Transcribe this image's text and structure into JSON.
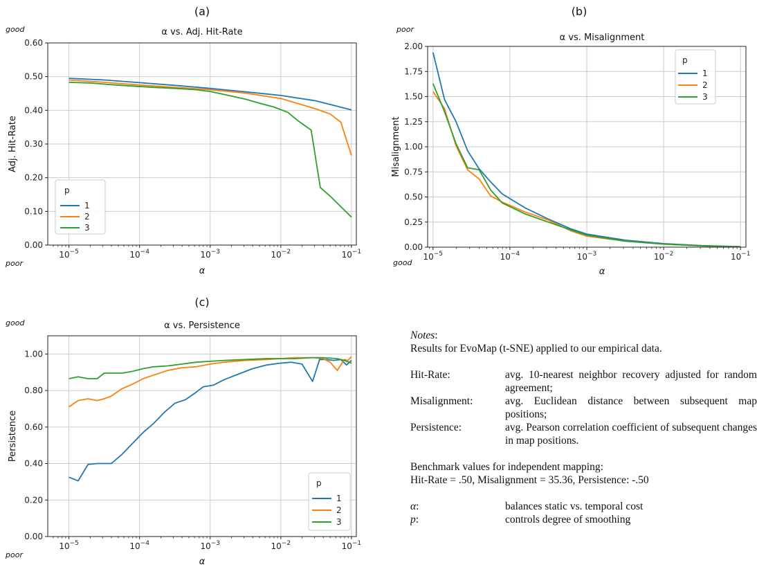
{
  "charts": [
    {
      "id": "a",
      "panel_label": "(a)",
      "quality_top": "good",
      "quality_bottom": "poor",
      "legend_position": "lower-left"
    },
    {
      "id": "b",
      "panel_label": "(b)",
      "quality_top": "poor",
      "quality_bottom": "good",
      "legend_position": "upper-right"
    },
    {
      "id": "c",
      "panel_label": "(c)",
      "quality_top": "good",
      "quality_bottom": "poor",
      "legend_position": "lower-right"
    }
  ],
  "colors": {
    "p1": "#1f77b4",
    "p2": "#ff7f0e",
    "p3": "#2ca02c",
    "grid": "#cccccc"
  },
  "chart_data": [
    {
      "type": "line",
      "title": "α vs. Adj. Hit-Rate",
      "xlabel": "α",
      "ylabel": "Adj. Hit-Rate",
      "xscale": "log",
      "xlim": [
        -5.3,
        -0.93
      ],
      "ylim": [
        0,
        0.6
      ],
      "xticks": [
        -5,
        -4,
        -3,
        -2,
        -1
      ],
      "yticks": [
        "0.00",
        "0.10",
        "0.20",
        "0.30",
        "0.40",
        "0.50",
        "0.60"
      ],
      "grid": true,
      "legend_title": "p",
      "series": [
        {
          "name": "1",
          "x": [
            -5,
            -4.5,
            -4,
            -3.5,
            -3,
            -2.5,
            -2,
            -1.5,
            -1.2,
            -1
          ],
          "y": [
            0.495,
            0.49,
            0.482,
            0.474,
            0.465,
            0.455,
            0.444,
            0.428,
            0.412,
            0.401
          ]
        },
        {
          "name": "2",
          "x": [
            -5,
            -4.5,
            -4,
            -3.5,
            -3,
            -2.5,
            -2,
            -1.5,
            -1.3,
            -1.15,
            -1
          ],
          "y": [
            0.49,
            0.483,
            0.475,
            0.468,
            0.461,
            0.451,
            0.435,
            0.404,
            0.389,
            0.365,
            0.266
          ]
        },
        {
          "name": "3",
          "x": [
            -5,
            -4.7,
            -4.4,
            -4.1,
            -3.8,
            -3.5,
            -3.2,
            -3,
            -2.8,
            -2.5,
            -2.3,
            -2.1,
            -1.9,
            -1.75,
            -1.57,
            -1.44,
            -1.3,
            -1
          ],
          "y": [
            0.483,
            0.481,
            0.476,
            0.472,
            0.468,
            0.465,
            0.461,
            0.456,
            0.447,
            0.433,
            0.421,
            0.41,
            0.394,
            0.368,
            0.341,
            0.171,
            0.145,
            0.083
          ]
        }
      ]
    },
    {
      "type": "line",
      "title": "α vs. Misalignment",
      "xlabel": "α",
      "ylabel": "Misalignment",
      "xscale": "log",
      "xlim": [
        -5.07,
        -0.93
      ],
      "ylim": [
        0,
        2.0
      ],
      "xticks": [
        -5,
        -4,
        -3,
        -2,
        -1
      ],
      "yticks": [
        "0.00",
        "0.25",
        "0.50",
        "0.75",
        "1.00",
        "1.25",
        "1.50",
        "1.75",
        "2.00"
      ],
      "grid": true,
      "legend_title": "p",
      "series": [
        {
          "name": "1",
          "x": [
            -5,
            -4.85,
            -4.7,
            -4.55,
            -4.4,
            -4.25,
            -4.1,
            -3.8,
            -3.5,
            -3.2,
            -3,
            -2.5,
            -2,
            -1.5,
            -1
          ],
          "y": [
            1.94,
            1.47,
            1.25,
            0.96,
            0.78,
            0.65,
            0.53,
            0.39,
            0.28,
            0.18,
            0.13,
            0.07,
            0.035,
            0.015,
            0.005
          ]
        },
        {
          "name": "2",
          "x": [
            -5,
            -4.85,
            -4.7,
            -4.55,
            -4.4,
            -4.25,
            -4.1,
            -3.8,
            -3.5,
            -3.2,
            -3,
            -2.5,
            -2,
            -1.5,
            -1
          ],
          "y": [
            1.55,
            1.38,
            1.01,
            0.77,
            0.68,
            0.51,
            0.45,
            0.35,
            0.27,
            0.16,
            0.11,
            0.06,
            0.03,
            0.012,
            0.004
          ]
        },
        {
          "name": "3",
          "x": [
            -5,
            -4.85,
            -4.7,
            -4.55,
            -4.4,
            -4.25,
            -4.1,
            -3.8,
            -3.5,
            -3.2,
            -3,
            -2.5,
            -2,
            -1.5,
            -1
          ],
          "y": [
            1.63,
            1.35,
            1.03,
            0.79,
            0.77,
            0.57,
            0.44,
            0.33,
            0.25,
            0.17,
            0.12,
            0.06,
            0.03,
            0.013,
            0.004
          ]
        }
      ]
    },
    {
      "type": "line",
      "title": "α vs. Persistence",
      "xlabel": "α",
      "ylabel": "Persistence",
      "xscale": "log",
      "xlim": [
        -5.3,
        -0.93
      ],
      "ylim": [
        0,
        1.1
      ],
      "xticks": [
        -5,
        -4,
        -3,
        -2,
        -1
      ],
      "yticks": [
        "0.00",
        "0.20",
        "0.40",
        "0.60",
        "0.80",
        "1.00"
      ],
      "grid": true,
      "legend_title": "p",
      "series": [
        {
          "name": "1",
          "x": [
            -5,
            -4.87,
            -4.73,
            -4.6,
            -4.5,
            -4.4,
            -4.25,
            -4.1,
            -3.95,
            -3.8,
            -3.65,
            -3.5,
            -3.35,
            -3.2,
            -3.1,
            -2.95,
            -2.8,
            -2.6,
            -2.4,
            -2.2,
            -2,
            -1.85,
            -1.7,
            -1.55,
            -1.45,
            -1.35,
            -1.25,
            -1.15,
            -1.07,
            -1
          ],
          "y": [
            0.325,
            0.305,
            0.395,
            0.4,
            0.4,
            0.4,
            0.45,
            0.51,
            0.57,
            0.62,
            0.68,
            0.73,
            0.75,
            0.79,
            0.82,
            0.83,
            0.86,
            0.89,
            0.92,
            0.94,
            0.95,
            0.955,
            0.945,
            0.85,
            0.97,
            0.97,
            0.965,
            0.97,
            0.94,
            0.965
          ]
        },
        {
          "name": "2",
          "x": [
            -5,
            -4.87,
            -4.73,
            -4.6,
            -4.5,
            -4.4,
            -4.25,
            -4.1,
            -3.95,
            -3.8,
            -3.6,
            -3.4,
            -3.2,
            -3,
            -2.8,
            -2.5,
            -2.2,
            -2,
            -1.8,
            -1.55,
            -1.4,
            -1.3,
            -1.2,
            -1.1,
            -1.05,
            -1
          ],
          "y": [
            0.71,
            0.745,
            0.755,
            0.745,
            0.755,
            0.77,
            0.81,
            0.835,
            0.865,
            0.885,
            0.91,
            0.925,
            0.93,
            0.945,
            0.955,
            0.965,
            0.97,
            0.975,
            0.98,
            0.98,
            0.975,
            0.955,
            0.91,
            0.97,
            0.965,
            0.985
          ]
        },
        {
          "name": "3",
          "x": [
            -5,
            -4.87,
            -4.73,
            -4.6,
            -4.5,
            -4.4,
            -4.25,
            -4.1,
            -3.95,
            -3.8,
            -3.6,
            -3.4,
            -3.2,
            -3,
            -2.8,
            -2.5,
            -2.2,
            -2,
            -1.8,
            -1.55,
            -1.4,
            -1.2,
            -1.1,
            -1
          ],
          "y": [
            0.865,
            0.875,
            0.865,
            0.865,
            0.895,
            0.895,
            0.895,
            0.905,
            0.92,
            0.93,
            0.935,
            0.945,
            0.955,
            0.96,
            0.965,
            0.97,
            0.975,
            0.975,
            0.975,
            0.98,
            0.98,
            0.975,
            0.965,
            0.95
          ]
        }
      ]
    }
  ],
  "notes": {
    "heading": "Notes",
    "heading_suffix": ":",
    "intro": "Results for EvoMap (t-SNE) applied to our empirical data.",
    "definitions": [
      {
        "term": "Hit-Rate:",
        "text": "avg. 10-nearest neighbor recovery adjusted for random agreement;"
      },
      {
        "term": "Misalignment:",
        "text": "avg. Euclidean distance between subsequent map positions;"
      },
      {
        "term": "Persistence:",
        "text": "avg. Pearson correlation coefficient of subsequent changes in map positions."
      }
    ],
    "benchmark_title": "Benchmark values for independent mapping:",
    "benchmark_values": "Hit-Rate = .50, Misalignment = 35.36, Persistence: -.50",
    "parameters": [
      {
        "symbol": "α",
        "suffix": ":",
        "text": "balances static vs. temporal cost"
      },
      {
        "symbol": "p",
        "suffix": ":",
        "text": "controls degree of smoothing"
      }
    ]
  }
}
